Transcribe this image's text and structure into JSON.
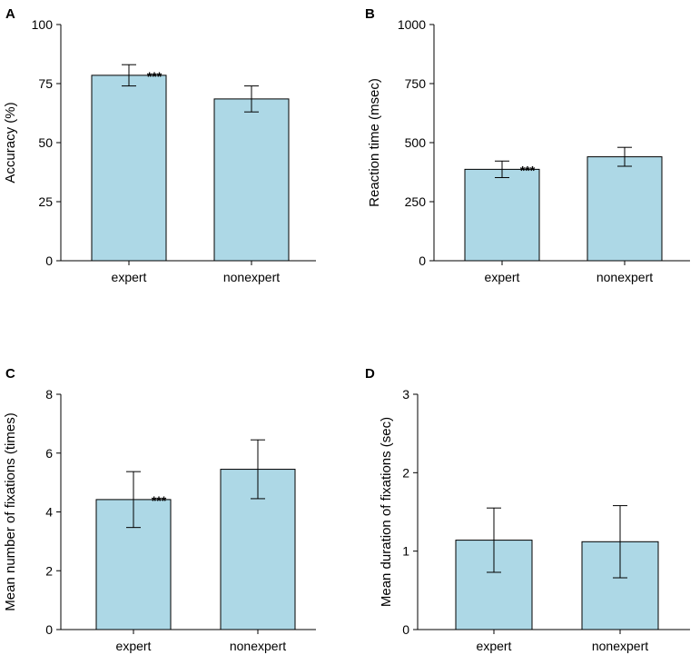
{
  "chart_data": [
    {
      "panel": "A",
      "type": "bar",
      "categories": [
        "expert",
        "nonexpert"
      ],
      "values": [
        78.5,
        68.5
      ],
      "errors": [
        4.5,
        5.5
      ],
      "significance": [
        "***",
        ""
      ],
      "ylabel": "Accuracy (%)",
      "ylim": [
        0,
        100
      ],
      "yticks": [
        0,
        25,
        50,
        75,
        100
      ]
    },
    {
      "panel": "B",
      "type": "bar",
      "categories": [
        "expert",
        "nonexpert"
      ],
      "values": [
        387,
        440
      ],
      "errors": [
        35,
        40
      ],
      "significance": [
        "***",
        ""
      ],
      "ylabel": "Reaction time (msec)",
      "ylim": [
        0,
        1000
      ],
      "yticks": [
        0,
        250,
        500,
        750,
        1000
      ]
    },
    {
      "panel": "C",
      "type": "bar",
      "categories": [
        "expert",
        "nonexpert"
      ],
      "values": [
        4.42,
        5.45
      ],
      "errors": [
        0.95,
        1.0
      ],
      "significance": [
        "***",
        ""
      ],
      "ylabel": "Mean number of fixations (times)",
      "ylim": [
        0,
        8
      ],
      "yticks": [
        0,
        2,
        4,
        6,
        8
      ]
    },
    {
      "panel": "D",
      "type": "bar",
      "categories": [
        "expert",
        "nonexpert"
      ],
      "values": [
        1.14,
        1.12
      ],
      "errors": [
        0.41,
        0.46
      ],
      "significance": [
        "",
        ""
      ],
      "ylabel": "Mean duration of fixations (sec)",
      "ylim": [
        0,
        3
      ],
      "yticks": [
        0,
        1,
        2,
        3
      ]
    }
  ]
}
